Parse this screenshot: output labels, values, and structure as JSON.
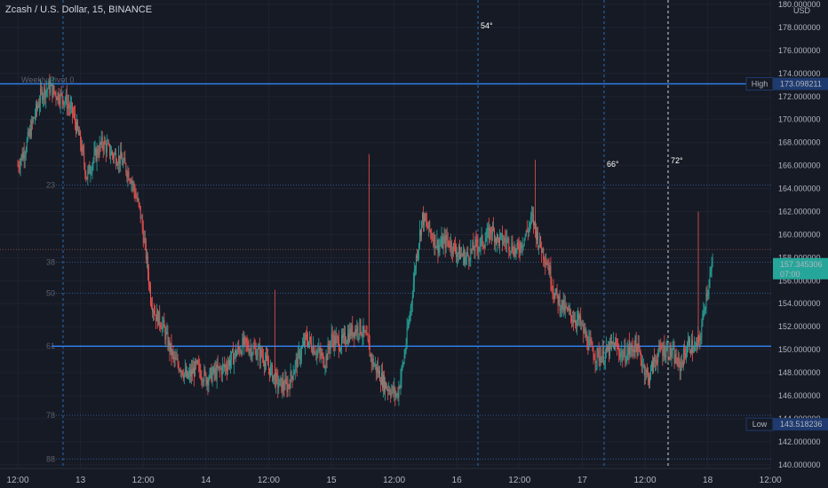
{
  "header": {
    "title": "Zcash / U.S. Dollar, 15, BINANCE"
  },
  "price_scale": {
    "currency": "USD"
  },
  "indicator": {
    "label": "Weekly Pivot 0"
  },
  "current_price": {
    "value": "157.345306",
    "countdown": "07:00",
    "color": "#26a69a"
  },
  "markers": {
    "high": {
      "label": "High",
      "value": "173.098211",
      "color": "#2962ff"
    },
    "low": {
      "label": "Low",
      "value": "143.518236",
      "color": "#2962ff"
    }
  },
  "angles": [
    "54°",
    "66°",
    "72°"
  ],
  "fib_labels": [
    "23",
    "38",
    "50",
    "61",
    "78",
    "88"
  ],
  "chart_data": {
    "type": "line",
    "title": "Zcash / U.S. Dollar, 15, BINANCE",
    "ylim": [
      139.5,
      180
    ],
    "y_ticks": [
      "180.000000",
      "178.000000",
      "176.000000",
      "174.000000",
      "172.000000",
      "170.000000",
      "168.000000",
      "166.000000",
      "164.000000",
      "162.000000",
      "160.000000",
      "158.000000",
      "156.000000",
      "154.000000",
      "152.000000",
      "150.000000",
      "148.000000",
      "146.000000",
      "144.000000",
      "142.000000",
      "140.000000"
    ],
    "x_ticks": [
      "12:00",
      "13",
      "12:00",
      "14",
      "12:00",
      "15",
      "12:00",
      "16",
      "12:00",
      "17",
      "12:00",
      "18",
      "12:00"
    ],
    "horizontal_levels": [
      {
        "name": "High",
        "value": 173.098211
      },
      {
        "name": "Pivot",
        "value": 150.3
      },
      {
        "name": "Low",
        "value": 143.518236
      }
    ],
    "fib_levels": [
      {
        "label": "23",
        "value": 164.3
      },
      {
        "label": "38",
        "value": 157.6
      },
      {
        "label": "50",
        "value": 154.9
      },
      {
        "label": "61",
        "value": 150.3
      },
      {
        "label": "78",
        "value": 144.3
      },
      {
        "label": "88",
        "value": 140.5
      }
    ],
    "series": [
      {
        "values": [
          [
            0,
            166
          ],
          [
            0.12,
            167.5
          ],
          [
            0.25,
            170
          ],
          [
            0.38,
            172.3
          ],
          [
            0.5,
            172.8
          ],
          [
            0.62,
            172.2
          ],
          [
            0.75,
            171.8
          ],
          [
            0.88,
            170.5
          ],
          [
            1.0,
            168
          ],
          [
            1.1,
            165
          ],
          [
            1.2,
            166.5
          ],
          [
            1.35,
            168
          ],
          [
            1.5,
            167
          ],
          [
            1.65,
            166.5
          ],
          [
            1.8,
            165
          ],
          [
            1.95,
            162
          ],
          [
            2.05,
            158
          ],
          [
            2.12,
            154.5
          ],
          [
            2.2,
            153
          ],
          [
            2.3,
            152.3
          ],
          [
            2.4,
            150.5
          ],
          [
            2.5,
            149
          ],
          [
            2.6,
            148.5
          ],
          [
            2.7,
            147.5
          ],
          [
            2.85,
            148.5
          ],
          [
            3.0,
            147.5
          ],
          [
            3.15,
            148
          ],
          [
            3.3,
            148.5
          ],
          [
            3.45,
            149.5
          ],
          [
            3.6,
            150.5
          ],
          [
            3.75,
            150
          ],
          [
            3.9,
            149.5
          ],
          [
            4.05,
            148
          ],
          [
            4.15,
            147
          ],
          [
            4.3,
            146.8
          ],
          [
            4.45,
            149
          ],
          [
            4.6,
            151
          ],
          [
            4.75,
            150
          ],
          [
            4.9,
            149
          ],
          [
            5.0,
            151
          ],
          [
            5.15,
            150.5
          ],
          [
            5.3,
            151.5
          ],
          [
            5.45,
            152
          ],
          [
            5.55,
            151
          ],
          [
            5.65,
            149
          ],
          [
            5.75,
            148
          ],
          [
            5.85,
            147
          ],
          [
            5.95,
            146.5
          ],
          [
            6.05,
            146
          ],
          [
            6.15,
            149
          ],
          [
            6.25,
            153
          ],
          [
            6.35,
            158
          ],
          [
            6.45,
            161.5
          ],
          [
            6.55,
            160.5
          ],
          [
            6.7,
            159
          ],
          [
            6.85,
            159.5
          ],
          [
            7.0,
            158.5
          ],
          [
            7.15,
            158
          ],
          [
            7.3,
            159
          ],
          [
            7.45,
            159.5
          ],
          [
            7.55,
            160.5
          ],
          [
            7.65,
            159.5
          ],
          [
            7.8,
            159.5
          ],
          [
            7.95,
            158.5
          ],
          [
            8.1,
            160
          ],
          [
            8.2,
            161.5
          ],
          [
            8.3,
            159.5
          ],
          [
            8.45,
            157.5
          ],
          [
            8.55,
            155
          ],
          [
            8.65,
            154
          ],
          [
            8.8,
            153
          ],
          [
            8.95,
            152.5
          ],
          [
            9.1,
            150.5
          ],
          [
            9.2,
            149.5
          ],
          [
            9.35,
            149.5
          ],
          [
            9.5,
            150.5
          ],
          [
            9.65,
            149.5
          ],
          [
            9.75,
            149.8
          ],
          [
            9.85,
            150.5
          ],
          [
            9.95,
            149
          ],
          [
            10.05,
            147.5
          ],
          [
            10.15,
            149
          ],
          [
            10.25,
            150
          ],
          [
            10.35,
            150
          ],
          [
            10.45,
            149.5
          ],
          [
            10.55,
            148.5
          ],
          [
            10.62,
            149.5
          ],
          [
            10.7,
            150.5
          ],
          [
            10.8,
            150
          ],
          [
            10.88,
            151
          ],
          [
            10.95,
            154
          ],
          [
            11.02,
            156
          ],
          [
            11.08,
            157.3
          ]
        ]
      }
    ]
  }
}
